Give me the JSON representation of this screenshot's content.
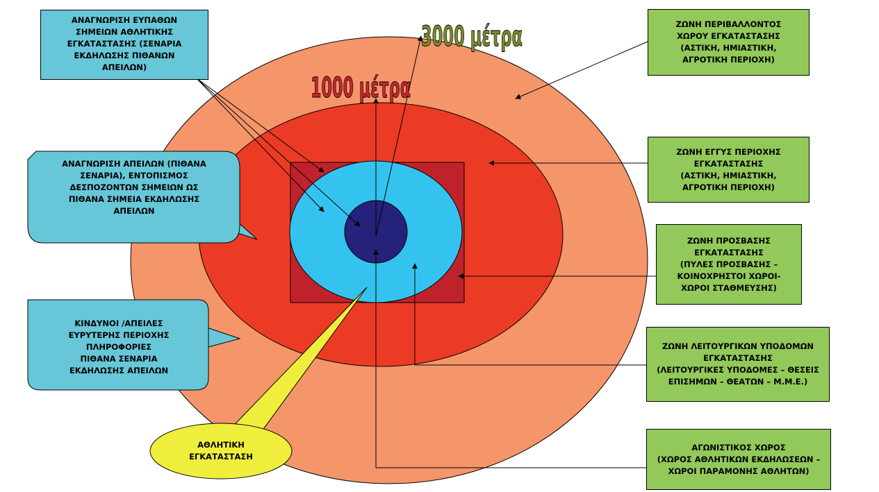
{
  "colors": {
    "outer_zone": "#f4956a",
    "near_zone": "#ec3b25",
    "square": "#c0222c",
    "cyan_zone": "#34c3ee",
    "core": "#24227a",
    "green_box": "#92c95a",
    "cyan_box": "#67c7d8",
    "yellow_callout": "#f0ee3c",
    "label_1000": "#c8262a",
    "label_3000": "#7d8a2a"
  },
  "labels": {
    "distance_1000": "1000 μέτρα",
    "distance_3000": "3000 μέτρα"
  },
  "left_callouts": {
    "top": "ΑΝΑΓΝΩΡΙΣΗ ΕΥΠΑΘΩΝ\nΣΗΜΕΙΩΝ ΑΘΛΗΤΙΚΗΣ\nΕΓΚΑΤΑΣΤΑΣΗΣ (ΣΕΝΑΡΙΑ\nΕΚΔΗΛΩΣΗΣ ΠΙΘΑΝΩΝ\nΑΠΕΙΛΩΝ)",
    "middle": "ΑΝΑΓΝΩΡΙΣΗ ΑΠΕΙΛΩΝ (ΠΙΘΑΝΑ\nΣΕΝΑΡΙΑ), ΕΝΤΟΠΙΣΜΟΣ\nΔΕΣΠΟΖΟΝΤΩΝ ΣΗΜΕΙΩΝ ΩΣ\nΠΙΘΑΝΑ ΣΗΜΕΙΑ ΕΚΔΗΛΩΣΗΣ\nΑΠΕΙΛΩΝ",
    "bottom": "ΚΙΝΔΥΝΟΙ /ΑΠΕΙΛΕΣ\nΕΥΡΥΤΕΡΗΣ ΠΕΡΙΟΧΗΣ\nΠΛΗΡΟΦΟΡΙΕΣ\nΠΙΘΑΝΑ ΣΕΝΑΡΙΑ\nΕΚΔΗΛΩΣΗΣ ΑΠΕΙΛΩΝ",
    "facility": "ΑΘΛΗΤΙΚΗ\nΕΓΚΑΤΑΣΤΑΣΗ"
  },
  "zones": [
    {
      "text": "ΖΩΝΗ ΠΕΡΙΒΑΛΛΟΝΤΟΣ\nΧΩΡΟΥ ΕΓΚΑΤΑΣΤΑΣΗΣ\n(ΑΣΤΙΚΗ, ΗΜΙΑΣΤΙΚΗ,\nΑΓΡΟΤΙΚΗ ΠΕΡΙΟΧΗ)"
    },
    {
      "text": "ΖΩΝΗ ΕΓΓΥΣ ΠΕΡΙΟΧΗΣ\nΕΓΚΑΤΑΣΤΑΣΗΣ\n(ΑΣΤΙΚΗ, ΗΜΙΑΣΤΙΚΗ,\nΑΓΡΟΤΙΚΗ ΠΕΡΙΟΧΗ)"
    },
    {
      "text": "ΖΩΝΗ ΠΡΟΣΒΑΣΗΣ\nΕΓΚΑΤΑΣΤΑΣΗΣ\n(ΠΥΛΕΣ ΠΡΟΣΒΑΣΗΣ –\nΚΟΙΝΟΧΡΗΣΤΟΙ ΧΩΡΟΙ-\nΧΩΡΟΙ ΣΤΑΘΜΕΥΣΗΣ)"
    },
    {
      "text": "ΖΩΝΗ ΛΕΙΤΟΥΡΓΙΚΩΝ ΥΠΟΔΟΜΩΝ\nΕΓΚΑΤΑΣΤΑΣΗΣ\n(ΛΕΙΤΟΥΡΓΙΚΕΣ ΥΠΟΔΟΜΕΣ – ΘΕΣΕΙΣ\nΕΠΙΣΗΜΩΝ – ΘΕΑΤΩΝ – Μ.Μ.Ε.)"
    },
    {
      "text": "ΑΓΩΝΙΣΤΙΚΟΣ ΧΩΡΟΣ\n(ΧΩΡΟΣ ΑΘΛΗΤΙΚΩΝ ΕΚΔΗΛΩΣΕΩΝ –\nΧΩΡΟΙ ΠΑΡΑΜΟΝΗΣ ΑΘΛΗΤΩΝ)"
    }
  ]
}
